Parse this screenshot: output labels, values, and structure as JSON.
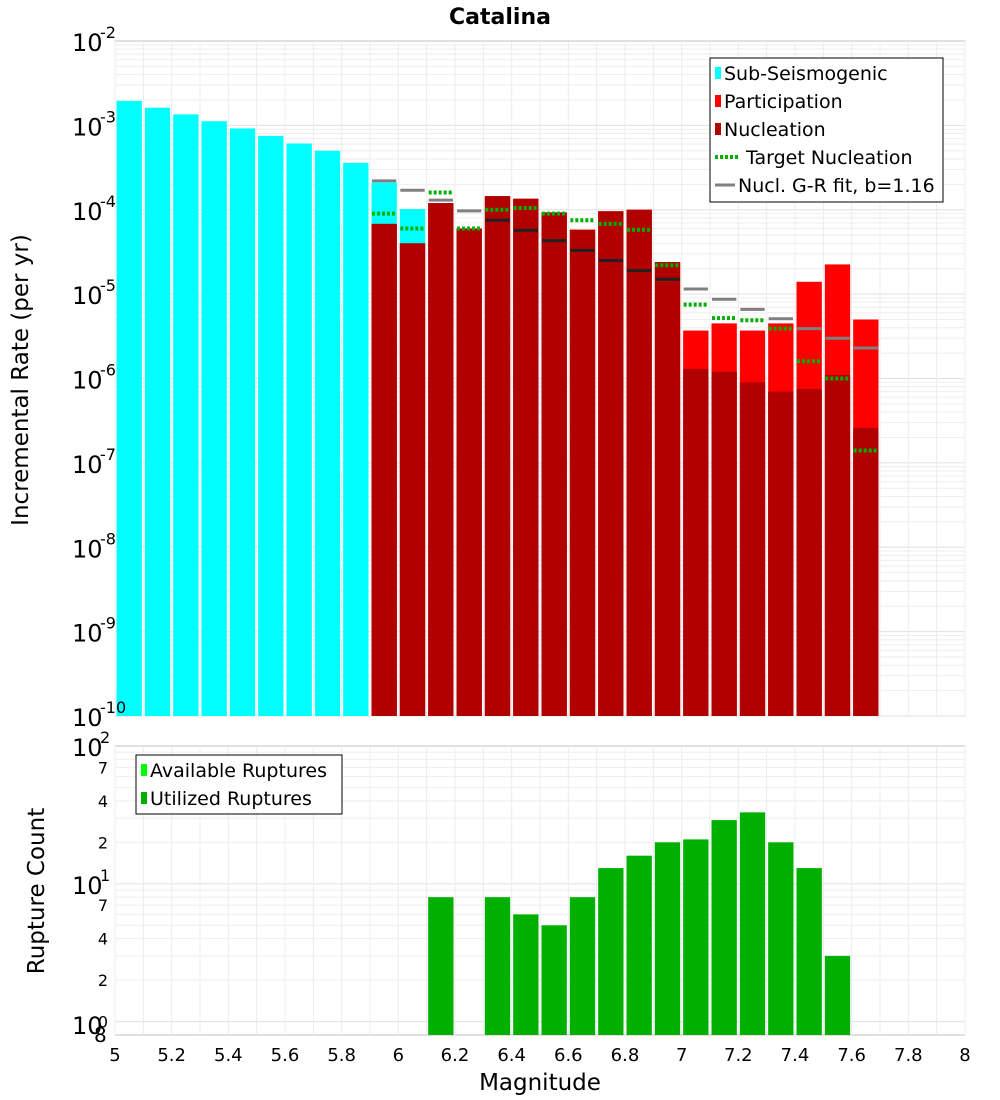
{
  "title": "Catalina",
  "colors": {
    "sub_seismogenic": "#00ffff",
    "participation": "#ff0000",
    "nucleation": "#b00000",
    "target_nucleation": "#00b000",
    "gr_fit_participation": "#808080",
    "gr_fit_nucleation": "#202020",
    "available_ruptures": "#00ff00",
    "utilized_ruptures": "#00b000"
  },
  "chart_data": [
    {
      "type": "bar",
      "panel": "top",
      "xlabel": "Magnitude",
      "ylabel": "Incremental Rate (per yr)",
      "xlim": [
        5,
        8
      ],
      "ylim": [
        1e-10,
        0.01
      ],
      "yscale": "log",
      "grid": true,
      "legend_position": "top-right",
      "bin_width": 0.1,
      "x_ticks": [
        "5",
        "5.2",
        "5.4",
        "5.6",
        "5.8",
        "6",
        "6.2",
        "6.4",
        "6.6",
        "6.8",
        "7",
        "7.2",
        "7.4",
        "7.6",
        "7.8",
        "8"
      ],
      "y_ticks": [
        {
          "base": "10",
          "exp": "-2"
        },
        {
          "base": "10",
          "exp": "-3"
        },
        {
          "base": "10",
          "exp": "-4"
        },
        {
          "base": "10",
          "exp": "-5"
        },
        {
          "base": "10",
          "exp": "-6"
        },
        {
          "base": "10",
          "exp": "-7"
        },
        {
          "base": "10",
          "exp": "-8"
        },
        {
          "base": "10",
          "exp": "-9"
        },
        {
          "base": "10",
          "exp": "-10"
        }
      ],
      "legend": [
        {
          "label": "Sub-Seismogenic",
          "kind": "box",
          "color": "#00ffff"
        },
        {
          "label": "Participation",
          "kind": "box",
          "color": "#ff0000"
        },
        {
          "label": "Nucleation",
          "kind": "box",
          "color": "#b00000"
        },
        {
          "label": "Target Nucleation",
          "kind": "dotted",
          "color": "#00b000"
        },
        {
          "label": "Nucl. G-R fit, b=1.16",
          "kind": "line",
          "color": "#808080"
        }
      ],
      "series": [
        {
          "name": "Sub-Seismogenic",
          "x": [
            5.05,
            5.15,
            5.25,
            5.35,
            5.45,
            5.55,
            5.65,
            5.75,
            5.85,
            5.95,
            6.05
          ],
          "values": [
            0.00195,
            0.00162,
            0.00135,
            0.00112,
            0.00092,
            0.00075,
            0.00061,
            0.0005,
            0.00036,
            0.00021,
            0.000102
          ]
        },
        {
          "name": "Participation",
          "x": [
            5.95,
            6.05,
            6.15,
            6.25,
            6.35,
            6.45,
            6.55,
            6.65,
            6.75,
            6.85,
            6.95,
            7.05,
            7.15,
            7.25,
            7.35,
            7.45,
            7.55,
            7.65
          ],
          "values": [
            6.8e-05,
            4e-05,
            0.00012,
            6e-05,
            0.000145,
            0.000135,
            9.3e-05,
            5.8e-05,
            9.6e-05,
            0.0001,
            2.4e-05,
            3.7e-06,
            4.5e-06,
            3.7e-06,
            4.5e-06,
            1.4e-05,
            2.25e-05,
            5e-06
          ]
        },
        {
          "name": "Nucleation",
          "x": [
            5.95,
            6.05,
            6.15,
            6.25,
            6.35,
            6.45,
            6.55,
            6.65,
            6.75,
            6.85,
            6.95,
            7.05,
            7.15,
            7.25,
            7.35,
            7.45,
            7.55,
            7.65
          ],
          "values": [
            6.8e-05,
            4e-05,
            0.00012,
            6e-05,
            0.000145,
            0.000135,
            9.3e-05,
            5.8e-05,
            9.6e-05,
            0.0001,
            2.4e-05,
            1.3e-06,
            1.2e-06,
            9e-07,
            7e-07,
            7.5e-07,
            1.1e-06,
            2.6e-07
          ]
        },
        {
          "name": "Target Nucleation",
          "x": [
            5.95,
            6.05,
            6.15,
            6.25,
            6.35,
            6.45,
            6.55,
            6.65,
            6.75,
            6.85,
            6.95,
            7.05,
            7.15,
            7.25,
            7.35,
            7.45,
            7.55,
            7.65
          ],
          "values": [
            9e-05,
            6e-05,
            0.00016,
            6e-05,
            0.0001,
            0.000105,
            9e-05,
            7.5e-05,
            6.8e-05,
            5.8e-05,
            2.2e-05,
            7.5e-06,
            5.2e-06,
            4.9e-06,
            3.9e-06,
            1.6e-06,
            1e-06,
            1.4e-07
          ]
        },
        {
          "name": "Nucl. G-R fit, b=1.16",
          "x": [
            5.95,
            6.05,
            6.15,
            6.25,
            6.35,
            6.45,
            6.55,
            6.65,
            6.75,
            6.85,
            6.95,
            7.05,
            7.15,
            7.25,
            7.35,
            7.45,
            7.55,
            7.65
          ],
          "values": [
            0.00022,
            0.00017,
            0.00013,
            9.7e-05,
            7.5e-05,
            5.7e-05,
            4.3e-05,
            3.3e-05,
            2.5e-05,
            1.9e-05,
            1.5e-05,
            1.15e-05,
            8.7e-06,
            6.6e-06,
            5.1e-06,
            3.9e-06,
            3e-06,
            2.3e-06
          ]
        }
      ]
    },
    {
      "type": "bar",
      "panel": "bottom",
      "xlabel": "Magnitude",
      "ylabel": "Rupture Count",
      "xlim": [
        5,
        8
      ],
      "ylim": [
        0.8,
        100
      ],
      "yscale": "log",
      "grid": true,
      "legend_position": "top-left",
      "bin_width": 0.1,
      "y_ticks": [
        {
          "value": 100,
          "base": "10",
          "exp": "2"
        },
        {
          "value": 70,
          "label": "7"
        },
        {
          "value": 40,
          "label": "4"
        },
        {
          "value": 20,
          "label": "2"
        },
        {
          "value": 10,
          "base": "10",
          "exp": "1"
        },
        {
          "value": 7,
          "label": "7"
        },
        {
          "value": 4,
          "label": "4"
        },
        {
          "value": 2,
          "label": "2"
        },
        {
          "value": 1,
          "label": "0"
        }
      ],
      "bottom_labels": {
        "base": "10",
        "second": "8"
      },
      "legend": [
        {
          "label": "Available Ruptures",
          "kind": "box",
          "color": "#00ff00"
        },
        {
          "label": "Utilized Ruptures",
          "kind": "box",
          "color": "#00b000"
        }
      ],
      "series": [
        {
          "name": "Utilized Ruptures",
          "x": [
            6.15,
            6.35,
            6.45,
            6.55,
            6.65,
            6.75,
            6.85,
            6.95,
            7.05,
            7.15,
            7.25,
            7.35,
            7.45,
            7.55
          ],
          "values": [
            8,
            8,
            6,
            5,
            8,
            13,
            16,
            20,
            21,
            29,
            33,
            20,
            13,
            3
          ]
        }
      ]
    }
  ]
}
